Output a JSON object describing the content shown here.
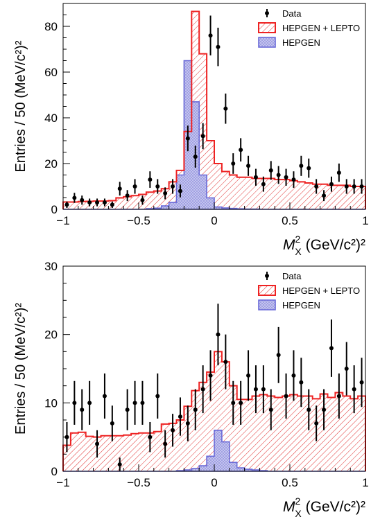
{
  "chart_data": [
    {
      "type": "histogram",
      "xlabel_main": "M",
      "xlabel_sup": "2",
      "xlabel_sub": "X",
      "xlabel_unit": "(GeV/c²)²",
      "ylabel": "Entries / 50 (MeV/c²)²",
      "xlim": [
        -1,
        1
      ],
      "ylim": [
        0,
        90
      ],
      "x_ticks": [
        -1,
        -0.5,
        0,
        0.5,
        1
      ],
      "x_tick_labels": [
        "−1",
        "−0.5",
        "0",
        "0.5",
        "1"
      ],
      "y_ticks": [
        0,
        20,
        40,
        60,
        80
      ],
      "y_tick_labels": [
        "0",
        "20",
        "40",
        "60",
        "80"
      ],
      "legend": [
        {
          "label": "Data",
          "kind": "marker"
        },
        {
          "label": "HEPGEN + LEPTO",
          "kind": "red-hatch"
        },
        {
          "label": "HEPGEN",
          "kind": "blue-fill"
        }
      ],
      "bin_edges_start": -1.0,
      "bin_width": 0.05,
      "total_mc": [
        3.2,
        3.2,
        3.4,
        3.5,
        3.6,
        3.6,
        3.8,
        5.0,
        5.5,
        6.0,
        6.5,
        7.5,
        8.0,
        9.0,
        12.0,
        17.0,
        34.0,
        86.5,
        68.0,
        30.0,
        20.0,
        16.5,
        15.0,
        14.0,
        14.0,
        13.5,
        13.5,
        13.5,
        13.0,
        13.0,
        12.5,
        12.0,
        11.5,
        11.0,
        11.0,
        10.5,
        10.5,
        10.5,
        10.0,
        10.0
      ],
      "hepgen": [
        0,
        0,
        0,
        0,
        0,
        0,
        0,
        0,
        0,
        0,
        0,
        0.3,
        0.5,
        1.5,
        3.0,
        15.0,
        65.0,
        47.0,
        15.0,
        5.0,
        1.0,
        0.6,
        0.4,
        0.2,
        0.1,
        0.1,
        0,
        0,
        0,
        0,
        0,
        0,
        0,
        0,
        0,
        0,
        0,
        0,
        0,
        0
      ],
      "data_points": [
        {
          "x": -0.975,
          "y": 2,
          "err": 1.4
        },
        {
          "x": -0.925,
          "y": 5,
          "err": 2.2
        },
        {
          "x": -0.875,
          "y": 4,
          "err": 2.0
        },
        {
          "x": -0.825,
          "y": 3,
          "err": 1.7
        },
        {
          "x": -0.775,
          "y": 3,
          "err": 1.7
        },
        {
          "x": -0.725,
          "y": 3,
          "err": 1.7
        },
        {
          "x": -0.675,
          "y": 2,
          "err": 1.4
        },
        {
          "x": -0.625,
          "y": 9,
          "err": 3.0
        },
        {
          "x": -0.575,
          "y": 6,
          "err": 2.4
        },
        {
          "x": -0.525,
          "y": 10,
          "err": 3.2
        },
        {
          "x": -0.475,
          "y": 4,
          "err": 2.0
        },
        {
          "x": -0.425,
          "y": 13,
          "err": 3.6
        },
        {
          "x": -0.375,
          "y": 10,
          "err": 3.2
        },
        {
          "x": -0.325,
          "y": 7,
          "err": 2.6
        },
        {
          "x": -0.275,
          "y": 10,
          "err": 3.2
        },
        {
          "x": -0.225,
          "y": 8,
          "err": 2.8
        },
        {
          "x": -0.175,
          "y": 31,
          "err": 5.6
        },
        {
          "x": -0.125,
          "y": 23,
          "err": 4.8
        },
        {
          "x": -0.075,
          "y": 32,
          "err": 5.7
        },
        {
          "x": -0.025,
          "y": 76,
          "err": 8.7
        },
        {
          "x": 0.025,
          "y": 71,
          "err": 8.4
        },
        {
          "x": 0.075,
          "y": 44,
          "err": 6.6
        },
        {
          "x": 0.125,
          "y": 20,
          "err": 4.5
        },
        {
          "x": 0.175,
          "y": 26,
          "err": 5.1
        },
        {
          "x": 0.225,
          "y": 19,
          "err": 4.4
        },
        {
          "x": 0.275,
          "y": 14,
          "err": 3.7
        },
        {
          "x": 0.325,
          "y": 11,
          "err": 3.3
        },
        {
          "x": 0.375,
          "y": 17,
          "err": 4.1
        },
        {
          "x": 0.425,
          "y": 15,
          "err": 3.9
        },
        {
          "x": 0.475,
          "y": 14,
          "err": 3.7
        },
        {
          "x": 0.525,
          "y": 13,
          "err": 3.6
        },
        {
          "x": 0.575,
          "y": 19,
          "err": 4.4
        },
        {
          "x": 0.625,
          "y": 18,
          "err": 4.2
        },
        {
          "x": 0.675,
          "y": 10,
          "err": 3.2
        },
        {
          "x": 0.725,
          "y": 6,
          "err": 2.4
        },
        {
          "x": 0.775,
          "y": 11,
          "err": 3.3
        },
        {
          "x": 0.825,
          "y": 16,
          "err": 4.0
        },
        {
          "x": 0.875,
          "y": 10,
          "err": 3.2
        },
        {
          "x": 0.925,
          "y": 10,
          "err": 3.2
        },
        {
          "x": 0.975,
          "y": 10,
          "err": 3.2
        }
      ]
    },
    {
      "type": "histogram",
      "xlabel_main": "M",
      "xlabel_sup": "2",
      "xlabel_sub": "X",
      "xlabel_unit": "(GeV/c²)²",
      "ylabel": "Entries / 50 (MeV/c²)²",
      "xlim": [
        -1,
        1
      ],
      "ylim": [
        0,
        30
      ],
      "x_ticks": [
        -1,
        -0.5,
        0,
        0.5,
        1
      ],
      "x_tick_labels": [
        "−1",
        "−0.5",
        "0",
        "0.5",
        "1"
      ],
      "y_ticks": [
        0,
        10,
        20,
        30
      ],
      "y_tick_labels": [
        "0",
        "10",
        "20",
        "30"
      ],
      "legend": [
        {
          "label": "Data",
          "kind": "marker"
        },
        {
          "label": "HEPGEN + LEPTO",
          "kind": "red-hatch"
        },
        {
          "label": "HEPGEN",
          "kind": "blue-fill"
        }
      ],
      "bin_edges_start": -1.0,
      "bin_width": 0.05,
      "total_mc": [
        3.8,
        5.6,
        5.7,
        5.1,
        5.0,
        5.2,
        5.2,
        5.2,
        5.3,
        5.5,
        5.6,
        5.6,
        5.8,
        6.9,
        7.0,
        7.5,
        9.5,
        11.8,
        13.0,
        14.5,
        17.5,
        16.0,
        12.5,
        10.5,
        10.5,
        11.0,
        11.2,
        11.0,
        10.8,
        11.0,
        11.2,
        11.0,
        11.0,
        10.6,
        11.3,
        10.8,
        11.5,
        11.0,
        10.6,
        11.0
      ],
      "hepgen": [
        0,
        0,
        0,
        0,
        0,
        0,
        0,
        0,
        0,
        0,
        0,
        0,
        0,
        0,
        0,
        0.1,
        0.2,
        0.4,
        0.8,
        2.2,
        6.0,
        4.3,
        1.3,
        0.5,
        0.3,
        0.2,
        0.1,
        0,
        0,
        0,
        0,
        0,
        0,
        0,
        0,
        0,
        0,
        0,
        0,
        0
      ],
      "data_points": [
        {
          "x": -0.975,
          "y": 5,
          "err": 2.2
        },
        {
          "x": -0.925,
          "y": 10,
          "err": 3.2
        },
        {
          "x": -0.875,
          "y": 9,
          "err": 3.0
        },
        {
          "x": -0.825,
          "y": 10,
          "err": 3.2
        },
        {
          "x": -0.775,
          "y": 4,
          "err": 2.0
        },
        {
          "x": -0.725,
          "y": 11,
          "err": 3.3
        },
        {
          "x": -0.675,
          "y": 7,
          "err": 2.6
        },
        {
          "x": -0.625,
          "y": 1,
          "err": 1.0
        },
        {
          "x": -0.575,
          "y": 9,
          "err": 3.0
        },
        {
          "x": -0.525,
          "y": 10,
          "err": 3.2
        },
        {
          "x": -0.475,
          "y": 10,
          "err": 3.2
        },
        {
          "x": -0.425,
          "y": 5,
          "err": 2.2
        },
        {
          "x": -0.375,
          "y": 11,
          "err": 3.3
        },
        {
          "x": -0.325,
          "y": 4,
          "err": 2.0
        },
        {
          "x": -0.275,
          "y": 6,
          "err": 2.4
        },
        {
          "x": -0.225,
          "y": 8,
          "err": 2.8
        },
        {
          "x": -0.175,
          "y": 7,
          "err": 2.6
        },
        {
          "x": -0.125,
          "y": 9,
          "err": 3.0
        },
        {
          "x": -0.075,
          "y": 12,
          "err": 3.5
        },
        {
          "x": -0.025,
          "y": 14,
          "err": 3.7
        },
        {
          "x": 0.025,
          "y": 20,
          "err": 4.5
        },
        {
          "x": 0.075,
          "y": 16,
          "err": 4.0
        },
        {
          "x": 0.125,
          "y": 10,
          "err": 3.2
        },
        {
          "x": 0.175,
          "y": 10,
          "err": 3.2
        },
        {
          "x": 0.225,
          "y": 14,
          "err": 3.7
        },
        {
          "x": 0.275,
          "y": 12,
          "err": 3.5
        },
        {
          "x": 0.325,
          "y": 12,
          "err": 3.5
        },
        {
          "x": 0.375,
          "y": 9,
          "err": 3.0
        },
        {
          "x": 0.425,
          "y": 17,
          "err": 4.1
        },
        {
          "x": 0.475,
          "y": 11,
          "err": 3.3
        },
        {
          "x": 0.525,
          "y": 14,
          "err": 3.7
        },
        {
          "x": 0.575,
          "y": 13,
          "err": 3.6
        },
        {
          "x": 0.625,
          "y": 9,
          "err": 3.0
        },
        {
          "x": 0.675,
          "y": 7,
          "err": 2.6
        },
        {
          "x": 0.725,
          "y": 9,
          "err": 3.0
        },
        {
          "x": 0.775,
          "y": 18,
          "err": 4.2
        },
        {
          "x": 0.825,
          "y": 11,
          "err": 3.3
        },
        {
          "x": 0.875,
          "y": 15,
          "err": 3.9
        },
        {
          "x": 0.925,
          "y": 12,
          "err": 3.5
        },
        {
          "x": 0.975,
          "y": 13,
          "err": 3.6
        }
      ]
    }
  ]
}
